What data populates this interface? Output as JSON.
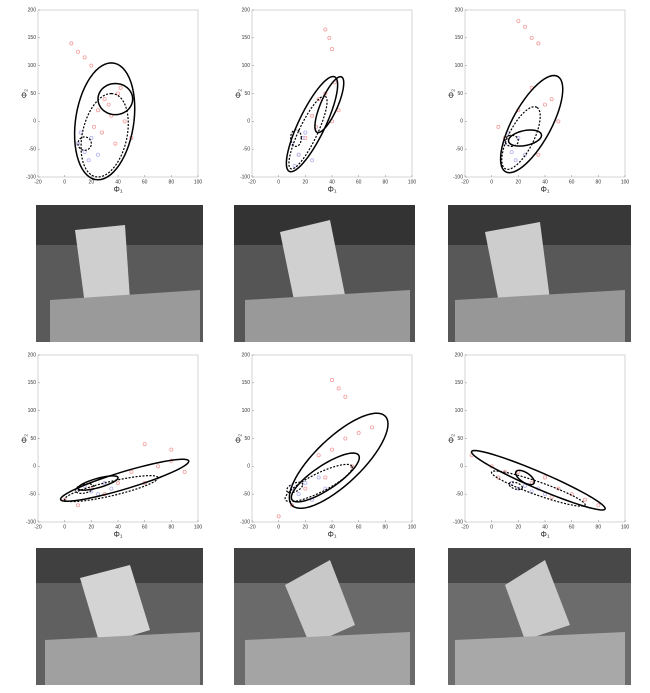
{
  "chart_data": [
    {
      "type": "scatter",
      "xlabel": "Φ₁",
      "ylabel": "Φ₂",
      "xlim": [
        -20,
        100
      ],
      "ylim": [
        -100,
        200
      ],
      "xticks": [
        -20,
        0,
        20,
        40,
        60,
        80,
        100
      ],
      "yticks": [
        -100,
        -50,
        0,
        50,
        100,
        150,
        200
      ],
      "series": [
        {
          "color": "#f4a0a0",
          "x": [
            5,
            10,
            15,
            20,
            25,
            30,
            35,
            40,
            45,
            28,
            33,
            38,
            22,
            42,
            50
          ],
          "y": [
            140,
            125,
            115,
            100,
            20,
            40,
            10,
            50,
            0,
            -20,
            30,
            -40,
            -10,
            60,
            -30
          ]
        },
        {
          "color": "#b4b4f0",
          "x": [
            10,
            15,
            20,
            25,
            12,
            18
          ],
          "y": [
            -40,
            -55,
            -30,
            -60,
            -20,
            -70
          ]
        }
      ],
      "ellipses": [
        {
          "style": "solid",
          "cx": 30,
          "cy": 0,
          "u": [
            5,
            105
          ],
          "v": [
            22,
            0
          ]
        },
        {
          "style": "solid",
          "cx": 38,
          "cy": 40,
          "u": [
            0,
            28
          ],
          "v": [
            13,
            0
          ]
        },
        {
          "style": "dashed",
          "cx": 30,
          "cy": -25,
          "u": [
            5,
            75
          ],
          "v": [
            17,
            0
          ]
        },
        {
          "style": "dashed",
          "cx": 15,
          "cy": -40,
          "u": [
            5,
            0
          ],
          "v": [
            0,
            12
          ]
        }
      ]
    },
    {
      "type": "scatter",
      "xlabel": "Φ₁",
      "ylabel": "Φ₂",
      "xlim": [
        -20,
        100
      ],
      "ylim": [
        -100,
        200
      ],
      "xticks": [
        -20,
        0,
        20,
        40,
        60,
        80,
        100
      ],
      "yticks": [
        -100,
        -50,
        0,
        50,
        100,
        150,
        200
      ],
      "series": [
        {
          "color": "#f4a0a0",
          "x": [
            35,
            38,
            40,
            20,
            25,
            30,
            35,
            42,
            45,
            15,
            28,
            40
          ],
          "y": [
            165,
            150,
            130,
            -30,
            10,
            40,
            50,
            70,
            20,
            -60,
            -10,
            0
          ]
        },
        {
          "color": "#b4b4f0",
          "x": [
            10,
            15,
            20,
            25,
            12,
            18
          ],
          "y": [
            -40,
            -60,
            -20,
            -70,
            -80,
            -30
          ]
        }
      ],
      "ellipses": [
        {
          "style": "solid",
          "cx": 25,
          "cy": -5,
          "u": [
            17,
            85
          ],
          "v": [
            9,
            -10
          ]
        },
        {
          "style": "solid",
          "cx": 38,
          "cy": 30,
          "u": [
            9,
            50
          ],
          "v": [
            6,
            -5
          ]
        },
        {
          "style": "dashed",
          "cx": 22,
          "cy": -20,
          "u": [
            13,
            65
          ],
          "v": [
            6,
            -8
          ]
        },
        {
          "style": "dashed",
          "cx": 13,
          "cy": -30,
          "u": [
            4,
            0
          ],
          "v": [
            0,
            15
          ]
        }
      ]
    },
    {
      "type": "scatter",
      "xlabel": "Φ₁",
      "ylabel": "Φ₂",
      "xlim": [
        -20,
        100
      ],
      "ylim": [
        -100,
        200
      ],
      "xticks": [
        -20,
        0,
        20,
        40,
        60,
        80,
        100
      ],
      "yticks": [
        -100,
        -50,
        0,
        50,
        100,
        150,
        200
      ],
      "series": [
        {
          "color": "#f4a0a0",
          "x": [
            20,
            25,
            30,
            35,
            10,
            20,
            30,
            40,
            45,
            50,
            5,
            35
          ],
          "y": [
            180,
            170,
            150,
            140,
            -30,
            20,
            60,
            30,
            40,
            0,
            -10,
            -60
          ]
        },
        {
          "color": "#b4b4f0",
          "x": [
            10,
            15,
            20,
            25,
            12,
            18
          ],
          "y": [
            -40,
            -55,
            -30,
            -60,
            -20,
            -70
          ]
        }
      ],
      "ellipses": [
        {
          "style": "solid",
          "cx": 30,
          "cy": -5,
          "u": [
            20,
            85
          ],
          "v": [
            12,
            -20
          ]
        },
        {
          "style": "solid",
          "cx": 25,
          "cy": -30,
          "u": [
            12,
            8
          ],
          "v": [
            3,
            -12
          ]
        },
        {
          "style": "dashed",
          "cx": 22,
          "cy": -30,
          "u": [
            12,
            55
          ],
          "v": [
            8,
            -12
          ]
        },
        {
          "style": "dashed",
          "cx": 15,
          "cy": -35,
          "u": [
            5,
            0
          ],
          "v": [
            0,
            10
          ]
        }
      ]
    },
    {
      "type": "scatter",
      "xlabel": "Φ₁",
      "ylabel": "Φ₂",
      "xlim": [
        -20,
        100
      ],
      "ylim": [
        -100,
        200
      ],
      "xticks": [
        -20,
        0,
        20,
        40,
        60,
        80,
        100
      ],
      "yticks": [
        -100,
        -50,
        0,
        50,
        100,
        150,
        200
      ],
      "series": [
        {
          "color": "#f4a0a0",
          "x": [
            0,
            20,
            40,
            60,
            80,
            90,
            50,
            30,
            70,
            10,
            60,
            80
          ],
          "y": [
            -60,
            -40,
            -30,
            40,
            30,
            -10,
            -10,
            -50,
            0,
            -70,
            -30,
            10
          ]
        },
        {
          "color": "#b4b4f0",
          "x": [
            10,
            15,
            20,
            30,
            25,
            35
          ],
          "y": [
            -40,
            -35,
            -45,
            -30,
            -50,
            -40
          ]
        }
      ],
      "ellipses": [
        {
          "style": "solid",
          "cx": 45,
          "cy": -25,
          "u": [
            48,
            35
          ],
          "v": [
            -3,
            14
          ]
        },
        {
          "style": "solid",
          "cx": 25,
          "cy": -30,
          "u": [
            15,
            10
          ],
          "v": [
            -1,
            8
          ]
        },
        {
          "style": "dashed",
          "cx": 35,
          "cy": -40,
          "u": [
            35,
            20
          ],
          "v": [
            -2,
            12
          ]
        },
        {
          "style": "dashed",
          "cx": 15,
          "cy": -40,
          "u": [
            7,
            3
          ],
          "v": [
            0,
            8
          ]
        }
      ]
    },
    {
      "type": "scatter",
      "xlabel": "Φ₁",
      "ylabel": "Φ₂",
      "xlim": [
        -20,
        100
      ],
      "ylim": [
        -100,
        200
      ],
      "xticks": [
        -20,
        0,
        20,
        40,
        60,
        80,
        100
      ],
      "yticks": [
        -100,
        -50,
        0,
        50,
        100,
        150,
        200
      ],
      "series": [
        {
          "color": "#f4a0a0",
          "x": [
            40,
            45,
            50,
            20,
            30,
            40,
            50,
            60,
            70,
            10,
            35,
            55,
            0
          ],
          "y": [
            155,
            140,
            125,
            -40,
            20,
            30,
            50,
            60,
            70,
            -70,
            -20,
            0,
            -90
          ]
        },
        {
          "color": "#b4b4f0",
          "x": [
            10,
            20,
            30,
            15,
            25,
            35
          ],
          "y": [
            -40,
            -30,
            -20,
            -50,
            -60,
            -40
          ]
        }
      ],
      "ellipses": [
        {
          "style": "solid",
          "cx": 45,
          "cy": 10,
          "u": [
            35,
            80
          ],
          "v": [
            12,
            -30
          ]
        },
        {
          "style": "solid",
          "cx": 35,
          "cy": -20,
          "u": [
            25,
            40
          ],
          "v": [
            5,
            -18
          ]
        },
        {
          "style": "dashed",
          "cx": 30,
          "cy": -30,
          "u": [
            25,
            30
          ],
          "v": [
            3,
            -15
          ]
        },
        {
          "style": "dashed",
          "cx": 12,
          "cy": -38,
          "u": [
            6,
            5
          ],
          "v": [
            0,
            8
          ]
        }
      ]
    },
    {
      "type": "scatter",
      "xlabel": "Φ₁",
      "ylabel": "Φ₂",
      "xlim": [
        -20,
        100
      ],
      "ylim": [
        -100,
        200
      ],
      "xticks": [
        -20,
        0,
        20,
        40,
        60,
        80,
        100
      ],
      "yticks": [
        -100,
        -50,
        0,
        50,
        100,
        150,
        200
      ],
      "series": [
        {
          "color": "#f4a0a0",
          "x": [
            -15,
            0,
            10,
            30,
            50,
            70,
            80,
            40,
            20,
            60,
            5,
            45
          ],
          "y": [
            20,
            0,
            -10,
            -30,
            -40,
            -60,
            -70,
            -20,
            -10,
            -50,
            -20,
            -55
          ]
        },
        {
          "color": "#b4b4f0",
          "x": [
            15,
            20,
            25,
            30,
            35,
            40
          ],
          "y": [
            -30,
            -40,
            -35,
            -45,
            -40,
            -50
          ]
        }
      ],
      "ellipses": [
        {
          "style": "solid",
          "cx": 35,
          "cy": -25,
          "u": [
            50,
            -52
          ],
          "v": [
            4,
            12
          ]
        },
        {
          "style": "solid",
          "cx": 25,
          "cy": -20,
          "u": [
            7,
            -8
          ],
          "v": [
            0,
            10
          ]
        },
        {
          "style": "dashed",
          "cx": 35,
          "cy": -40,
          "u": [
            35,
            -30
          ],
          "v": [
            3,
            10
          ]
        },
        {
          "style": "dashed",
          "cx": 18,
          "cy": -35,
          "u": [
            5,
            -3
          ],
          "v": [
            0,
            6
          ]
        }
      ]
    }
  ]
}
